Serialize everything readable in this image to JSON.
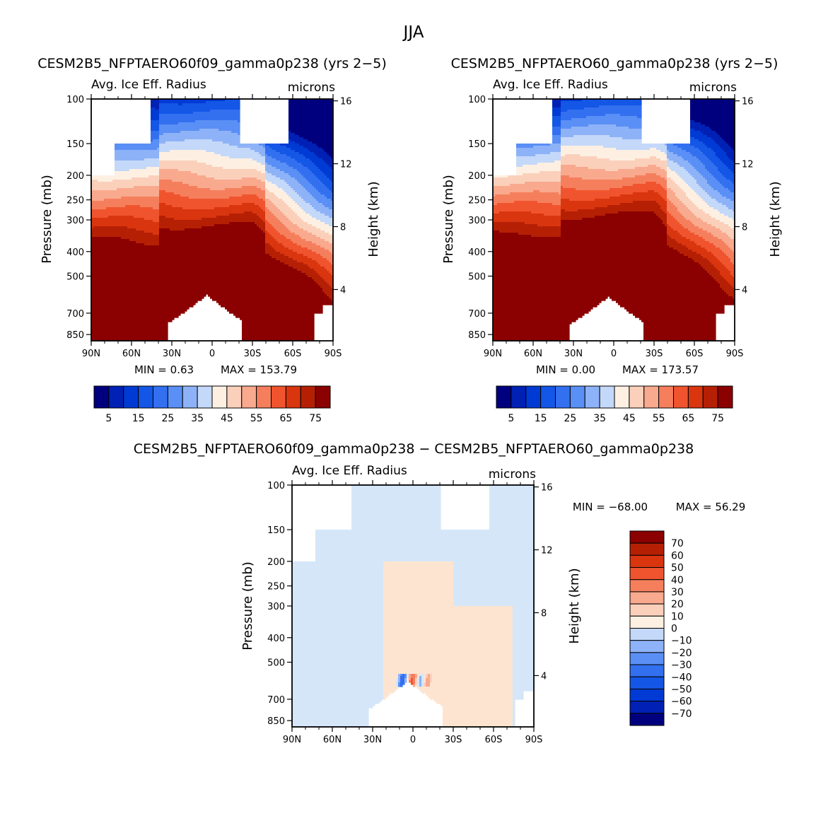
{
  "page_title": "JJA",
  "chart_data": [
    {
      "type": "heatmap",
      "case_title": "CESM2B5_NFPTAERO60f09_gamma0p238 (yrs 2−5)",
      "variable": "Avg. Ice Eff. Radius",
      "units": "microns",
      "ylabel": "Pressure (mb)",
      "ylabel_right": "Height (km)",
      "x_ticks": [
        "90N",
        "60N",
        "30N",
        "0",
        "30S",
        "60S",
        "90S"
      ],
      "x_values": [
        90,
        60,
        30,
        0,
        -30,
        -60,
        -90
      ],
      "p_ticks": [
        100,
        150,
        200,
        250,
        300,
        400,
        500,
        700,
        850
      ],
      "height_ticks": [
        16,
        12,
        8,
        4
      ],
      "min_label": "MIN =    0.63",
      "max_label": "MAX = 153.79",
      "min": 0.63,
      "max": 153.79,
      "colorbar_labels": [
        "5",
        "15",
        "25",
        "35",
        "45",
        "55",
        "65",
        "75"
      ],
      "levels": [
        5,
        10,
        15,
        20,
        25,
        30,
        35,
        40,
        45,
        50,
        55,
        60,
        65,
        70,
        75
      ]
    },
    {
      "type": "heatmap",
      "case_title": "CESM2B5_NFPTAERO60_gamma0p238 (yrs 2−5)",
      "variable": "Avg. Ice Eff. Radius",
      "units": "microns",
      "ylabel": "Pressure (mb)",
      "ylabel_right": "Height (km)",
      "x_ticks": [
        "90N",
        "60N",
        "30N",
        "0",
        "30S",
        "60S",
        "90S"
      ],
      "x_values": [
        90,
        60,
        30,
        0,
        -30,
        -60,
        -90
      ],
      "p_ticks": [
        100,
        150,
        200,
        250,
        300,
        400,
        500,
        700,
        850
      ],
      "height_ticks": [
        16,
        12,
        8,
        4
      ],
      "min_label": "MIN =    0.00",
      "max_label": "MAX = 173.57",
      "min": 0.0,
      "max": 173.57,
      "colorbar_labels": [
        "5",
        "15",
        "25",
        "35",
        "45",
        "55",
        "65",
        "75"
      ],
      "levels": [
        5,
        10,
        15,
        20,
        25,
        30,
        35,
        40,
        45,
        50,
        55,
        60,
        65,
        70,
        75
      ]
    },
    {
      "type": "heatmap",
      "case_title": "CESM2B5_NFPTAERO60f09_gamma0p238 − CESM2B5_NFPTAERO60_gamma0p238",
      "variable": "Avg. Ice Eff. Radius",
      "units": "microns",
      "ylabel": "Pressure (mb)",
      "ylabel_right": "Height (km)",
      "x_ticks": [
        "90N",
        "60N",
        "30N",
        "0",
        "30S",
        "60S",
        "90S"
      ],
      "x_values": [
        90,
        60,
        30,
        0,
        -30,
        -60,
        -90
      ],
      "p_ticks": [
        100,
        150,
        200,
        250,
        300,
        400,
        500,
        700,
        850
      ],
      "height_ticks": [
        16,
        12,
        8,
        4
      ],
      "min_label": "MIN = −68.00",
      "max_label": "MAX =   56.29",
      "min": -68.0,
      "max": 56.29,
      "colorbar_labels": [
        "70",
        "60",
        "50",
        "40",
        "30",
        "20",
        "10",
        "0",
        "−10",
        "−20",
        "−30",
        "−40",
        "−50",
        "−60",
        "−70"
      ],
      "levels": [
        -70,
        -60,
        -50,
        -40,
        -30,
        -20,
        -10,
        0,
        10,
        20,
        30,
        40,
        50,
        60,
        70
      ]
    }
  ],
  "colors": {
    "palette16": [
      "#00007f",
      "#0021b4",
      "#003ad4",
      "#1456e6",
      "#3370f0",
      "#5a8ff5",
      "#8eb2f7",
      "#c4d8f9",
      "#fdf0e2",
      "#fbd0bb",
      "#f9a98e",
      "#f57f5d",
      "#f0542e",
      "#d9350f",
      "#b52005",
      "#8b0000"
    ],
    "diff_near_zero_pos": "#fde4d0",
    "diff_near_zero_neg": "#d5e6f9"
  }
}
